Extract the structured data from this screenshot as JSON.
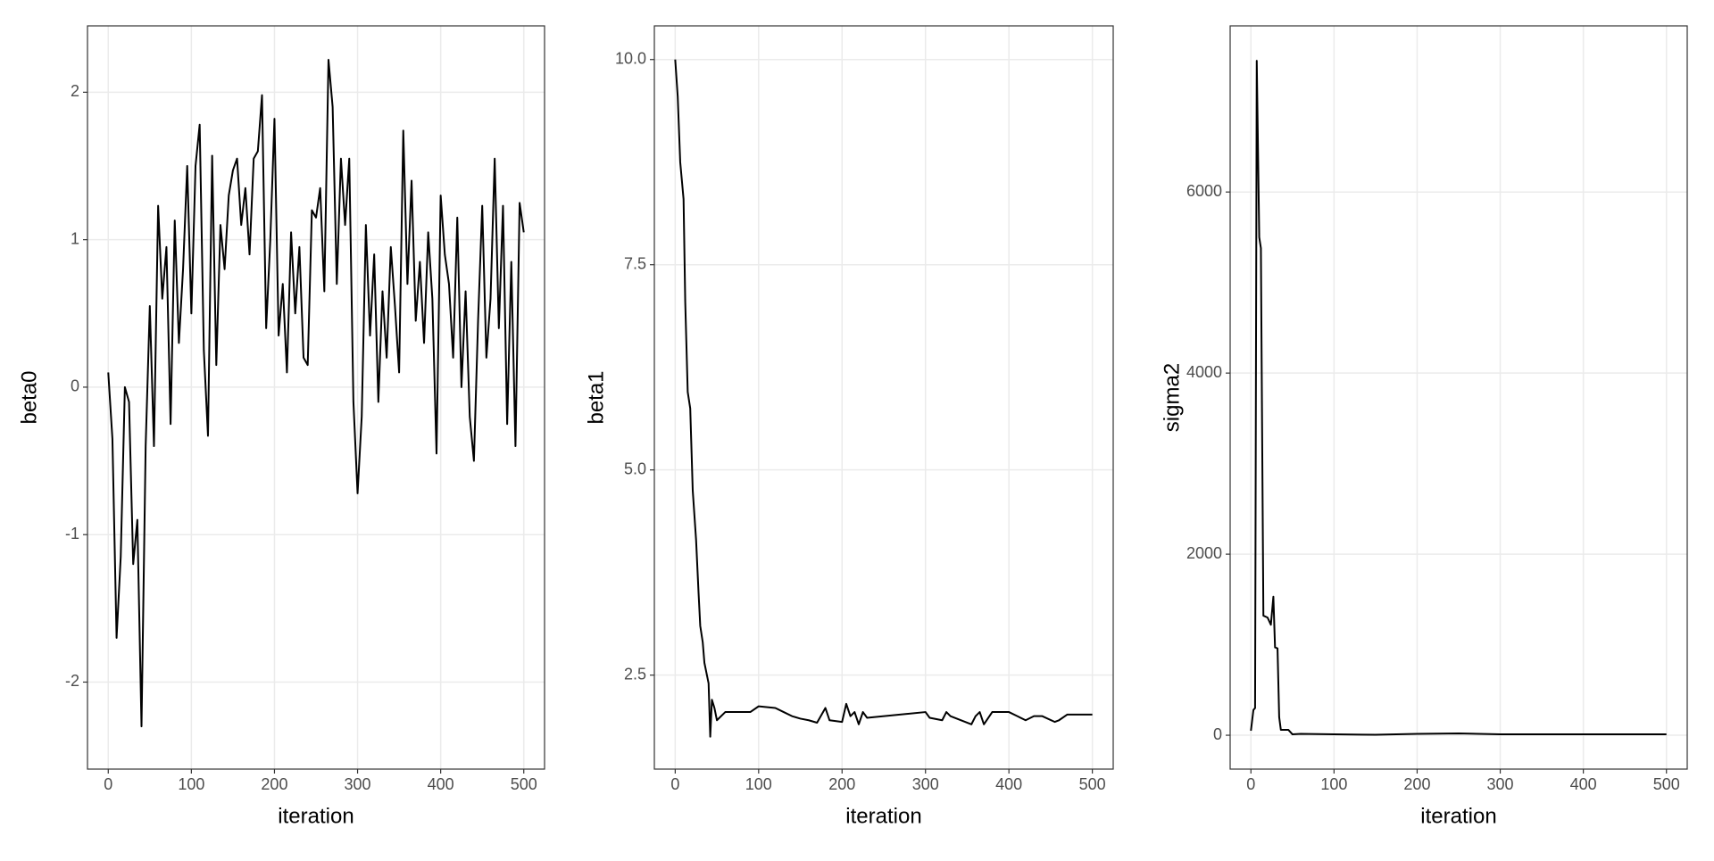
{
  "chart_data": [
    {
      "type": "line",
      "x_label": "iteration",
      "y_label": "beta0",
      "color": "#000000",
      "grid": true,
      "xlim": [
        -25,
        525
      ],
      "xticks": [
        0,
        100,
        200,
        300,
        400,
        500
      ],
      "ylim": [
        -2.59,
        2.45
      ],
      "yticks": [
        -2,
        -1,
        0,
        1,
        2
      ],
      "x": [
        0,
        5,
        10,
        15,
        20,
        25,
        30,
        35,
        40,
        45,
        50,
        55,
        60,
        65,
        70,
        75,
        80,
        85,
        90,
        95,
        100,
        105,
        110,
        115,
        120,
        125,
        130,
        135,
        140,
        145,
        150,
        155,
        160,
        165,
        170,
        175,
        180,
        185,
        190,
        195,
        200,
        205,
        210,
        215,
        220,
        225,
        230,
        235,
        240,
        245,
        250,
        255,
        260,
        265,
        270,
        275,
        280,
        285,
        290,
        295,
        300,
        305,
        310,
        315,
        320,
        325,
        330,
        335,
        340,
        345,
        350,
        355,
        360,
        365,
        370,
        375,
        380,
        385,
        390,
        395,
        400,
        405,
        410,
        415,
        420,
        425,
        430,
        435,
        440,
        445,
        450,
        455,
        460,
        465,
        470,
        475,
        480,
        485,
        490,
        495,
        500
      ],
      "values": [
        0.1,
        -0.35,
        -1.7,
        -1.15,
        0.0,
        -0.1,
        -1.2,
        -0.9,
        -2.3,
        -0.4,
        0.55,
        -0.4,
        1.23,
        0.6,
        0.95,
        -0.25,
        1.13,
        0.3,
        0.8,
        1.5,
        0.5,
        1.5,
        1.78,
        0.25,
        -0.33,
        1.57,
        0.15,
        1.1,
        0.8,
        1.3,
        1.47,
        1.55,
        1.1,
        1.35,
        0.9,
        1.55,
        1.6,
        1.98,
        0.4,
        1.0,
        1.82,
        0.35,
        0.7,
        0.1,
        1.05,
        0.5,
        0.95,
        0.2,
        0.15,
        1.2,
        1.15,
        1.35,
        0.65,
        2.22,
        1.9,
        0.7,
        1.55,
        1.1,
        1.55,
        -0.1,
        -0.72,
        -0.2,
        1.1,
        0.35,
        0.9,
        -0.1,
        0.65,
        0.2,
        0.95,
        0.55,
        0.1,
        1.74,
        0.7,
        1.4,
        0.45,
        0.85,
        0.3,
        1.05,
        0.6,
        -0.45,
        1.3,
        0.9,
        0.7,
        0.2,
        1.15,
        0.0,
        0.65,
        -0.2,
        -0.5,
        0.45,
        1.23,
        0.2,
        0.6,
        1.55,
        0.4,
        1.23,
        -0.25,
        0.85,
        -0.4,
        1.25,
        1.05
      ]
    },
    {
      "type": "line",
      "x_label": "iteration",
      "y_label": "beta1",
      "color": "#000000",
      "grid": true,
      "xlim": [
        -25,
        525
      ],
      "xticks": [
        0,
        100,
        200,
        300,
        400,
        500
      ],
      "ylim": [
        1.355,
        10.41
      ],
      "yticks": [
        2.5,
        {
          "value": 5,
          "label": "5.0"
        },
        7.5,
        {
          "value": 10,
          "label": "10.0"
        }
      ],
      "x": [
        0,
        3,
        6,
        10,
        12,
        15,
        18,
        21,
        25,
        28,
        30,
        33,
        35,
        40,
        42,
        44,
        47,
        50,
        60,
        90,
        100,
        120,
        130,
        140,
        150,
        160,
        170,
        180,
        185,
        200,
        205,
        210,
        215,
        220,
        225,
        230,
        300,
        305,
        320,
        325,
        330,
        355,
        360,
        365,
        370,
        380,
        400,
        410,
        420,
        430,
        440,
        455,
        460,
        470,
        480,
        500
      ],
      "values": [
        10,
        9.55,
        8.75,
        8.3,
        7.05,
        5.95,
        5.75,
        4.75,
        4.15,
        3.5,
        3.1,
        2.9,
        2.65,
        2.4,
        1.75,
        2.2,
        2.1,
        1.95,
        2.05,
        2.05,
        2.12,
        2.1,
        2.05,
        2.0,
        1.97,
        1.95,
        1.92,
        2.1,
        1.95,
        1.93,
        2.15,
        2.0,
        2.05,
        1.9,
        2.05,
        1.98,
        2.05,
        1.98,
        1.95,
        2.05,
        2.0,
        1.9,
        2.0,
        2.05,
        1.9,
        2.05,
        2.05,
        2.0,
        1.95,
        2.0,
        2.0,
        1.93,
        1.95,
        2.02,
        2.02,
        2.02
      ]
    },
    {
      "type": "line",
      "x_label": "iteration",
      "y_label": "sigma2",
      "color": "#000000",
      "grid": true,
      "xlim": [
        -25,
        525
      ],
      "xticks": [
        0,
        100,
        200,
        300,
        400,
        500
      ],
      "ylim": [
        -374,
        7835
      ],
      "yticks": [
        0,
        2000,
        4000,
        6000
      ],
      "x": [
        0,
        3,
        5,
        7,
        10,
        12,
        13,
        15,
        20,
        24,
        27,
        29,
        32,
        34,
        36,
        45,
        50,
        60,
        100,
        150,
        200,
        250,
        300,
        350,
        400,
        450,
        500
      ],
      "values": [
        50,
        280,
        300,
        7450,
        5500,
        5380,
        4000,
        1320,
        1300,
        1220,
        1530,
        970,
        960,
        200,
        60,
        60,
        10,
        15,
        10,
        5,
        15,
        20,
        10,
        10,
        10,
        10,
        10
      ]
    }
  ]
}
